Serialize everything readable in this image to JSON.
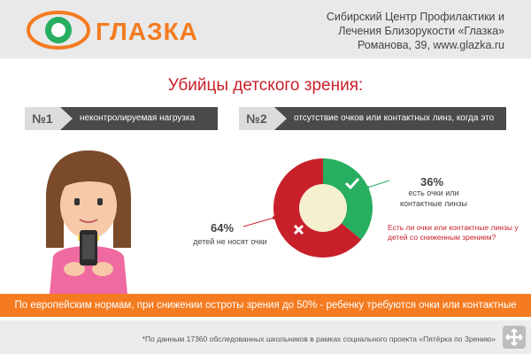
{
  "header": {
    "logo_text": "ГЛАЗКА",
    "org_lines": [
      "Сибирский Центр Профилактики и",
      "Лечения Близорукости «Глазка»",
      "Романова, 39, www.glazka.ru"
    ]
  },
  "title": "Убийцы детского зрения:",
  "items": [
    {
      "num": "№1",
      "label": "неконтролируемая нагрузка вблизи!"
    },
    {
      "num": "№2",
      "label": "отсутствие очков или контактных линз, когда это нужно."
    }
  ],
  "chart_data": {
    "type": "pie",
    "question": "Есть ли очки или контактные линзы у детей со сниженным зрением?",
    "slices": [
      {
        "value": 36,
        "label_value": "36%",
        "caption": "есть очки или контактные линзы",
        "color": "#27ae60"
      },
      {
        "value": 64,
        "label_value": "64%",
        "caption": "детей не носят очки",
        "color": "#c8202b"
      }
    ]
  },
  "banner": "По европейским нормам, при снижении остроты зрения до 50% - ребенку требуются очки или контактные линзы.",
  "footnote": "*По данным 17360 обследованных школьников в рамках социального проекта «Пятёрка по Зрению»",
  "colors": {
    "orange": "#f47b20",
    "red": "#c8202b",
    "green": "#27ae60",
    "dark": "#4a4a4a"
  }
}
